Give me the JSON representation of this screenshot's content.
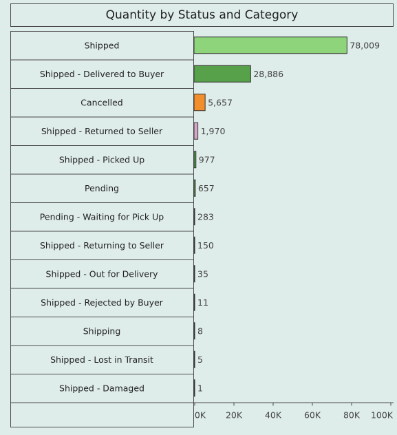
{
  "chart_data": {
    "type": "bar",
    "orientation": "horizontal",
    "title": "Quantity by Status and Category",
    "categories": [
      "Shipped",
      "Shipped - Delivered to Buyer",
      "Cancelled",
      "Shipped - Returned to Seller",
      "Shipped - Picked Up",
      "Pending",
      "Pending - Waiting for Pick Up",
      "Shipped - Returning to Seller",
      "Shipped - Out for Delivery",
      "Shipped - Rejected by Buyer",
      "Shipping",
      "Shipped - Lost in Transit",
      "Shipped - Damaged"
    ],
    "values": [
      78009,
      28886,
      5657,
      1970,
      977,
      657,
      283,
      150,
      35,
      11,
      8,
      5,
      1
    ],
    "value_labels": [
      "78,009",
      "28,886",
      "5,657",
      "1,970",
      "977",
      "657",
      "283",
      "150",
      "35",
      "11",
      "8",
      "5",
      "1"
    ],
    "colors": [
      "#8dd47a",
      "#57a14a",
      "#f28e2b",
      "#d4a6c8",
      "#57a14a",
      "#57a14a",
      "#57a14a",
      "#57a14a",
      "#57a14a",
      "#57a14a",
      "#57a14a",
      "#57a14a",
      "#57a14a"
    ],
    "xlim": [
      0,
      100000
    ],
    "xticks": [
      0,
      20000,
      40000,
      60000,
      80000,
      100000
    ],
    "xtick_labels": [
      "0K",
      "20K",
      "40K",
      "60K",
      "80K",
      "100K"
    ],
    "xlabel": "",
    "ylabel": "",
    "grid": false,
    "legend": "none"
  }
}
